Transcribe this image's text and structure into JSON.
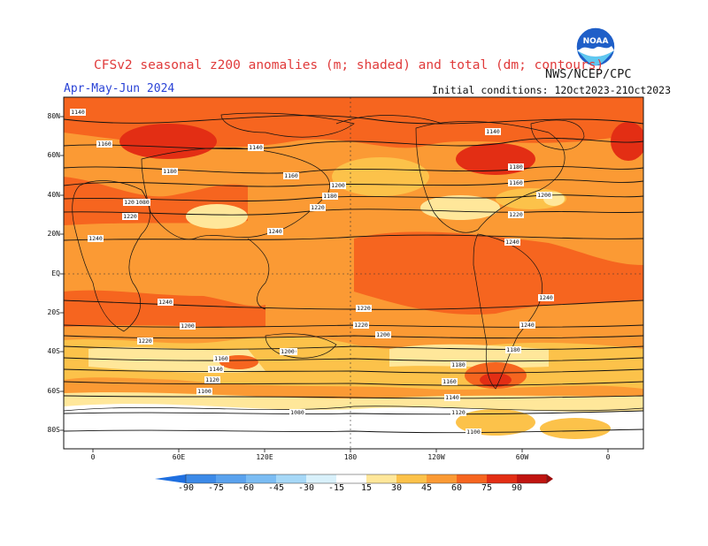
{
  "title": "CFSv2 seasonal z200 anomalies (m; shaded) and total (dm; contours)",
  "source": "NWS/NCEP/CPC",
  "season": "Apr-May-Jun 2024",
  "initial_conditions": "Initial conditions: 12Oct2023-21Oct2023",
  "logo_text": "NOAA",
  "lat_labels": [
    "80N",
    "60N",
    "40N",
    "20N",
    "EQ",
    "20S",
    "40S",
    "60S",
    "80S"
  ],
  "lon_labels": [
    "0",
    "60E",
    "120E",
    "180",
    "120W",
    "60W",
    "0"
  ],
  "colorbar": {
    "labels": [
      "-90",
      "-75",
      "-60",
      "-45",
      "-30",
      "-15",
      "15",
      "30",
      "45",
      "60",
      "75",
      "90"
    ],
    "colors": [
      "#1e6fe0",
      "#3c8ae8",
      "#5aa2ee",
      "#7bbcf3",
      "#a6d8f7",
      "#d9f1fb",
      "#ffffff",
      "#ffe79a",
      "#fcc24a",
      "#fb9a34",
      "#f6651f",
      "#e32e14",
      "#c01410",
      "#9d0c0c"
    ]
  },
  "contour_labels": [
    {
      "text": "1140"
    },
    {
      "text": "1160"
    },
    {
      "text": "1140"
    },
    {
      "text": "1180"
    },
    {
      "text": "1160"
    },
    {
      "text": "1180"
    },
    {
      "text": "1200"
    },
    {
      "text": "1200"
    },
    {
      "text": "1220"
    },
    {
      "text": "1220"
    },
    {
      "text": "1240"
    },
    {
      "text": "1240"
    },
    {
      "text": "1140"
    },
    {
      "text": "1160"
    },
    {
      "text": "1180"
    },
    {
      "text": "1200"
    },
    {
      "text": "1220"
    },
    {
      "text": "1240"
    },
    {
      "text": "1240"
    },
    {
      "text": "1220"
    },
    {
      "text": "1200"
    },
    {
      "text": "1240"
    },
    {
      "text": "1220"
    },
    {
      "text": "1200"
    },
    {
      "text": "1180"
    },
    {
      "text": "1160"
    },
    {
      "text": "1140"
    },
    {
      "text": "1120"
    },
    {
      "text": "1100"
    },
    {
      "text": "1080"
    },
    {
      "text": "1240"
    },
    {
      "text": "1220"
    },
    {
      "text": "1200"
    },
    {
      "text": "1180"
    },
    {
      "text": "1160"
    },
    {
      "text": "1140"
    },
    {
      "text": "1120"
    },
    {
      "text": "1100"
    },
    {
      "text": "1080"
    },
    {
      "text": "1200"
    }
  ]
}
